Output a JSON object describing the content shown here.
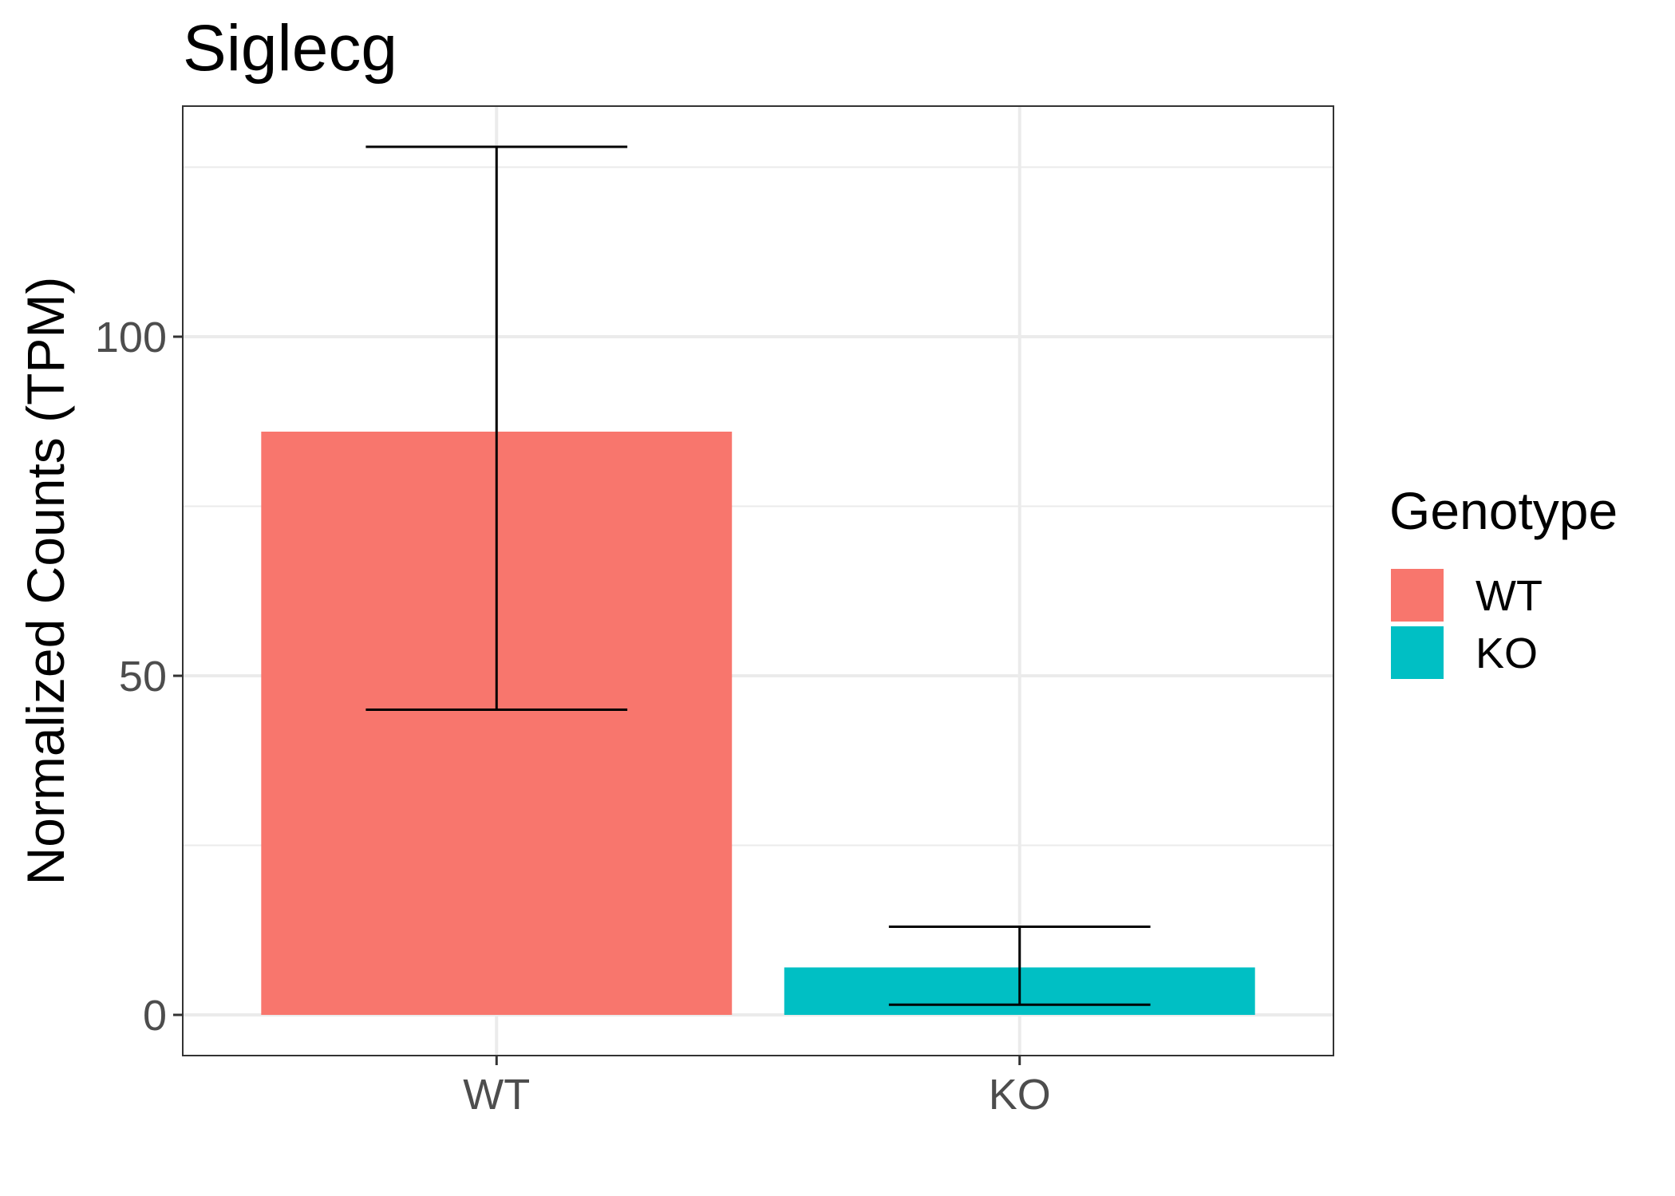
{
  "chart_data": {
    "type": "bar",
    "title": "Siglecg",
    "xlabel": "",
    "ylabel": "Normalized Counts (TPM)",
    "categories": [
      "WT",
      "KO"
    ],
    "values": [
      86,
      7
    ],
    "error_bars": [
      {
        "low": 45,
        "high": 128
      },
      {
        "low": 1.5,
        "high": 13
      }
    ],
    "ylim": [
      -6,
      134
    ],
    "yticks": [
      0,
      50,
      100
    ],
    "ytick_labels": [
      "0",
      "50",
      "100"
    ],
    "colors": [
      "#F8766D",
      "#00BFC4"
    ],
    "grid": true,
    "legend": {
      "title": "Genotype",
      "placement": "right",
      "entries": [
        {
          "label": "WT",
          "color": "#F8766D"
        },
        {
          "label": "KO",
          "color": "#00BFC4"
        }
      ]
    }
  }
}
